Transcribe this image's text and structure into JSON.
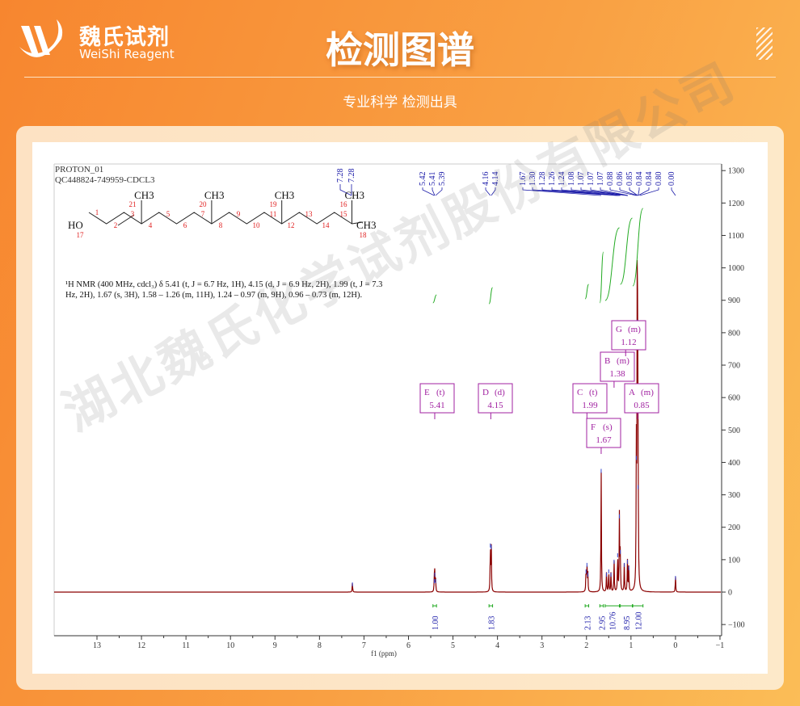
{
  "header": {
    "logo_cn": "魏氏试剂",
    "logo_en": "WeiShi Reagent",
    "title": "检测图谱",
    "subtitle": "专业科学  检测出具"
  },
  "watermark": "湖北魏氏化学试剂股份有限公司",
  "colors": {
    "spectrum": "#8b0000",
    "peak_labels": "#1a1aa8",
    "integrals": "#22aa22",
    "multiplet_boxes": "#a020a0",
    "atom_numbers": "#e02020"
  },
  "chart_data": {
    "type": "line",
    "title_lines": [
      "PROTON_01",
      "QC448824-749959-CDCL3"
    ],
    "xlabel": "f1 (ppm)",
    "xlim": [
      14,
      -1
    ],
    "ylim": [
      -100,
      1320
    ],
    "x_ticks": [
      13,
      12,
      11,
      10,
      9,
      8,
      7,
      6,
      5,
      4,
      3,
      2,
      1,
      0,
      -1
    ],
    "x_tick_labels": [
      "13",
      "12",
      "11",
      "10",
      "9",
      "8",
      "7",
      "6",
      "5",
      "4",
      "3",
      "2",
      "1",
      "0",
      "−1"
    ],
    "y_ticks": [
      1300,
      1200,
      1100,
      1000,
      900,
      800,
      700,
      600,
      500,
      400,
      300,
      200,
      100,
      0,
      -100
    ],
    "y_tick_labels": [
      "1300",
      "1200",
      "1100",
      "1000",
      "900",
      "800",
      "700",
      "600",
      "500",
      "400",
      "300",
      "200",
      "100",
      "0",
      "−100"
    ],
    "peaks": [
      {
        "ppm": 7.26,
        "height": 30
      },
      {
        "ppm": 5.42,
        "height": 40
      },
      {
        "ppm": 5.41,
        "height": 60
      },
      {
        "ppm": 5.39,
        "height": 40
      },
      {
        "ppm": 4.16,
        "height": 150
      },
      {
        "ppm": 4.14,
        "height": 145
      },
      {
        "ppm": 2.01,
        "height": 70
      },
      {
        "ppm": 1.99,
        "height": 90
      },
      {
        "ppm": 1.97,
        "height": 60
      },
      {
        "ppm": 1.67,
        "height": 380
      },
      {
        "ppm": 1.55,
        "height": 60
      },
      {
        "ppm": 1.5,
        "height": 70
      },
      {
        "ppm": 1.45,
        "height": 60
      },
      {
        "ppm": 1.38,
        "height": 100
      },
      {
        "ppm": 1.3,
        "height": 120
      },
      {
        "ppm": 1.26,
        "height": 240
      },
      {
        "ppm": 1.24,
        "height": 130
      },
      {
        "ppm": 1.15,
        "height": 90
      },
      {
        "ppm": 1.08,
        "height": 100
      },
      {
        "ppm": 1.05,
        "height": 80
      },
      {
        "ppm": 0.88,
        "height": 420
      },
      {
        "ppm": 0.86,
        "height": 840
      },
      {
        "ppm": 0.85,
        "height": 600
      },
      {
        "ppm": 0.84,
        "height": 330
      },
      {
        "ppm": 0.0,
        "height": 50
      }
    ],
    "peak_labels": [
      "7.28",
      "7.28",
      "5.42",
      "5.41",
      "5.39",
      "4.16",
      "4.14",
      "1.67",
      "1.30",
      "1.28",
      "1.26",
      "1.24",
      "1.08",
      "1.07",
      "1.07",
      "1.07",
      "0.88",
      "0.86",
      "0.85",
      "0.84",
      "0.84",
      "0.80",
      "0.00"
    ],
    "multiplets": [
      {
        "letter": "E",
        "mult": "(t)",
        "shift": "5.41"
      },
      {
        "letter": "D",
        "mult": "(d)",
        "shift": "4.15"
      },
      {
        "letter": "C",
        "mult": "(t)",
        "shift": "1.99"
      },
      {
        "letter": "F",
        "mult": "(s)",
        "shift": "1.67"
      },
      {
        "letter": "B",
        "mult": "(m)",
        "shift": "1.38"
      },
      {
        "letter": "G",
        "mult": "(m)",
        "shift": "1.12"
      },
      {
        "letter": "A",
        "mult": "(m)",
        "shift": "0.85"
      }
    ],
    "integrals": [
      {
        "from": 5.45,
        "to": 5.37,
        "value": "1.00"
      },
      {
        "from": 4.19,
        "to": 4.11,
        "value": "1.83"
      },
      {
        "from": 2.03,
        "to": 1.95,
        "value": "2.13"
      },
      {
        "from": 1.7,
        "to": 1.62,
        "value": "2.95"
      },
      {
        "from": 1.58,
        "to": 1.26,
        "value": "10.76"
      },
      {
        "from": 1.24,
        "to": 0.97,
        "value": "8.95"
      },
      {
        "from": 0.96,
        "to": 0.73,
        "value": "12.00"
      }
    ],
    "nmr_text": [
      "¹H NMR (400 MHz, cdcl₃) δ 5.41 (t, J = 6.7 Hz, 1H), 4.15 (d, J = 6.9 Hz, 2H), 1.99 (t, J = 7.3",
      "Hz, 2H), 1.67 (s, 3H), 1.58 – 1.26 (m, 11H), 1.24 – 0.97 (m, 9H), 0.96 – 0.73 (m, 12H)."
    ],
    "structure": {
      "ho": "HO",
      "ch3": "CH3",
      "atom_numbers": [
        "1",
        "2",
        "3",
        "4",
        "5",
        "6",
        "7",
        "8",
        "9",
        "10",
        "11",
        "12",
        "13",
        "14",
        "15",
        "16",
        "17",
        "18",
        "19",
        "20",
        "21"
      ]
    }
  }
}
